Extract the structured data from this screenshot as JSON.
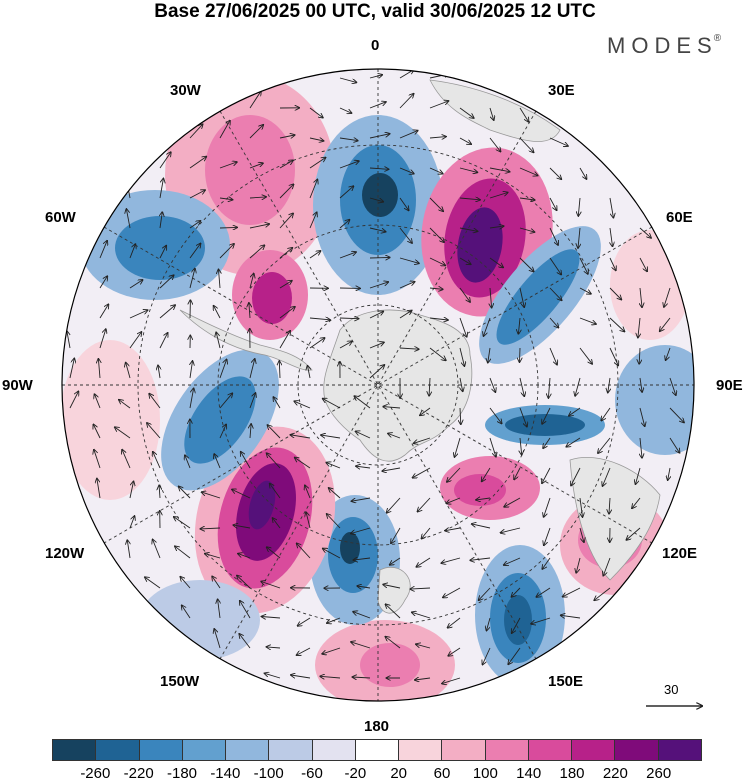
{
  "title": "Base 27/06/2025 00 UTC, valid 30/06/2025 12 UTC",
  "brand": {
    "name": "MODES",
    "mark": "®"
  },
  "longitude_labels": {
    "lon_0": "0",
    "lon_30e": "30E",
    "lon_60e": "60E",
    "lon_90e": "90E",
    "lon_120e": "120E",
    "lon_150e": "150E",
    "lon_180": "180",
    "lon_150w": "150W",
    "lon_120w": "120W",
    "lon_90w": "90W",
    "lon_60w": "60W",
    "lon_30w": "30W"
  },
  "reference_vector": {
    "label": "30"
  },
  "colorbar": {
    "ticks": [
      "-260",
      "-220",
      "-180",
      "-140",
      "-100",
      "-60",
      "-20",
      "20",
      "60",
      "100",
      "140",
      "180",
      "220",
      "260"
    ],
    "colors": [
      "#16425f",
      "#1f6394",
      "#3a85bd",
      "#62a0cf",
      "#91b7dd",
      "#bccbe6",
      "#e3e2f0",
      "#ffffff",
      "#f8d4dc",
      "#f3aec4",
      "#eb7eb0",
      "#d94b9c",
      "#b72189",
      "#7f0b7a",
      "#55117a"
    ]
  },
  "map": {
    "projection": "south-polar-stereographic",
    "positive_color": "#d94b9c",
    "negative_color": "#1f6394",
    "land_color": "#e6e6e6"
  }
}
